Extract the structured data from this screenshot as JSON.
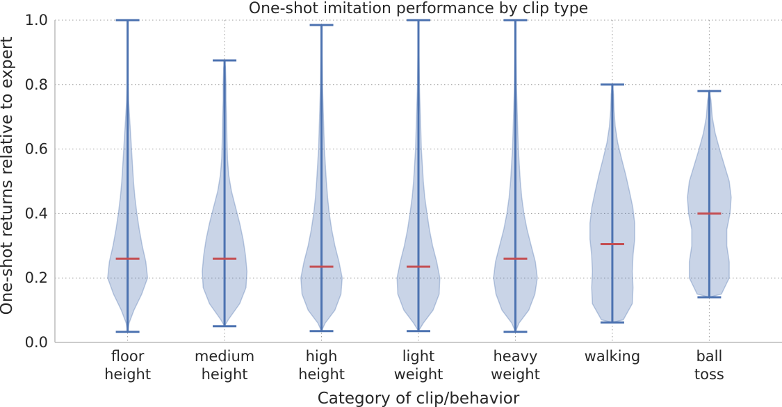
{
  "chart_data": {
    "type": "violin",
    "title": "One-shot imitation performance by clip type",
    "xlabel": "Category of clip/behavior",
    "ylabel": "One-shot returns relative to expert",
    "ylim": [
      0,
      1
    ],
    "yticks": [
      "0.0",
      "0.2",
      "0.4",
      "0.6",
      "0.8",
      "1.0"
    ],
    "grid": true,
    "colors": {
      "body": "#4c72b0",
      "median": "#c44e52",
      "grid": "#999999"
    },
    "categories": [
      {
        "label": [
          "floor",
          "height"
        ],
        "min": 0.033,
        "max": 1.0,
        "median": 0.26,
        "shape": [
          [
            0.033,
            0.0
          ],
          [
            0.06,
            0.06
          ],
          [
            0.1,
            0.26
          ],
          [
            0.15,
            0.58
          ],
          [
            0.2,
            0.82
          ],
          [
            0.25,
            0.75
          ],
          [
            0.3,
            0.6
          ],
          [
            0.35,
            0.48
          ],
          [
            0.4,
            0.38
          ],
          [
            0.45,
            0.3
          ],
          [
            0.5,
            0.24
          ],
          [
            0.55,
            0.2
          ],
          [
            0.6,
            0.16
          ],
          [
            0.65,
            0.12
          ],
          [
            0.7,
            0.08
          ],
          [
            0.75,
            0.04
          ],
          [
            0.8,
            0.02
          ],
          [
            0.9,
            0.01
          ],
          [
            1.0,
            0.0
          ]
        ]
      },
      {
        "label": [
          "medium",
          "height"
        ],
        "min": 0.05,
        "max": 0.875,
        "median": 0.26,
        "shape": [
          [
            0.05,
            0.0
          ],
          [
            0.07,
            0.15
          ],
          [
            0.12,
            0.62
          ],
          [
            0.17,
            0.88
          ],
          [
            0.22,
            0.92
          ],
          [
            0.27,
            0.86
          ],
          [
            0.32,
            0.76
          ],
          [
            0.37,
            0.62
          ],
          [
            0.42,
            0.45
          ],
          [
            0.47,
            0.28
          ],
          [
            0.52,
            0.17
          ],
          [
            0.57,
            0.12
          ],
          [
            0.62,
            0.1
          ],
          [
            0.7,
            0.08
          ],
          [
            0.75,
            0.06
          ],
          [
            0.8,
            0.06
          ],
          [
            0.85,
            0.04
          ],
          [
            0.875,
            0.0
          ]
        ]
      },
      {
        "label": [
          "high",
          "height"
        ],
        "min": 0.035,
        "max": 0.985,
        "median": 0.235,
        "shape": [
          [
            0.035,
            0.0
          ],
          [
            0.06,
            0.15
          ],
          [
            0.1,
            0.55
          ],
          [
            0.15,
            0.8
          ],
          [
            0.2,
            0.85
          ],
          [
            0.25,
            0.72
          ],
          [
            0.3,
            0.55
          ],
          [
            0.35,
            0.42
          ],
          [
            0.4,
            0.32
          ],
          [
            0.45,
            0.25
          ],
          [
            0.5,
            0.2
          ],
          [
            0.55,
            0.16
          ],
          [
            0.6,
            0.12
          ],
          [
            0.7,
            0.08
          ],
          [
            0.8,
            0.04
          ],
          [
            0.9,
            0.02
          ],
          [
            0.985,
            0.0
          ]
        ]
      },
      {
        "label": [
          "light",
          "weight"
        ],
        "min": 0.035,
        "max": 1.0,
        "median": 0.235,
        "shape": [
          [
            0.035,
            0.0
          ],
          [
            0.06,
            0.2
          ],
          [
            0.1,
            0.6
          ],
          [
            0.15,
            0.85
          ],
          [
            0.2,
            0.88
          ],
          [
            0.25,
            0.75
          ],
          [
            0.3,
            0.58
          ],
          [
            0.35,
            0.45
          ],
          [
            0.4,
            0.35
          ],
          [
            0.45,
            0.26
          ],
          [
            0.5,
            0.2
          ],
          [
            0.55,
            0.16
          ],
          [
            0.6,
            0.12
          ],
          [
            0.7,
            0.08
          ],
          [
            0.8,
            0.04
          ],
          [
            0.9,
            0.02
          ],
          [
            1.0,
            0.0
          ]
        ]
      },
      {
        "label": [
          "heavy",
          "weight"
        ],
        "min": 0.033,
        "max": 1.0,
        "median": 0.26,
        "shape": [
          [
            0.033,
            0.0
          ],
          [
            0.06,
            0.15
          ],
          [
            0.1,
            0.55
          ],
          [
            0.15,
            0.8
          ],
          [
            0.2,
            0.9
          ],
          [
            0.25,
            0.82
          ],
          [
            0.3,
            0.65
          ],
          [
            0.35,
            0.48
          ],
          [
            0.4,
            0.35
          ],
          [
            0.45,
            0.26
          ],
          [
            0.5,
            0.2
          ],
          [
            0.55,
            0.16
          ],
          [
            0.6,
            0.12
          ],
          [
            0.7,
            0.08
          ],
          [
            0.8,
            0.04
          ],
          [
            0.9,
            0.02
          ],
          [
            1.0,
            0.0
          ]
        ]
      },
      {
        "label": [
          "walking"
        ],
        "min": 0.062,
        "max": 0.8,
        "median": 0.305,
        "shape": [
          [
            0.062,
            0.0
          ],
          [
            0.07,
            0.45
          ],
          [
            0.12,
            0.82
          ],
          [
            0.17,
            0.85
          ],
          [
            0.22,
            0.82
          ],
          [
            0.27,
            0.85
          ],
          [
            0.32,
            0.92
          ],
          [
            0.37,
            0.92
          ],
          [
            0.42,
            0.84
          ],
          [
            0.47,
            0.7
          ],
          [
            0.52,
            0.55
          ],
          [
            0.57,
            0.38
          ],
          [
            0.62,
            0.22
          ],
          [
            0.67,
            0.12
          ],
          [
            0.72,
            0.07
          ],
          [
            0.77,
            0.05
          ],
          [
            0.8,
            0.0
          ]
        ]
      },
      {
        "label": [
          "ball",
          "toss"
        ],
        "min": 0.14,
        "max": 0.78,
        "median": 0.4,
        "shape": [
          [
            0.14,
            0.0
          ],
          [
            0.15,
            0.5
          ],
          [
            0.2,
            0.82
          ],
          [
            0.25,
            0.82
          ],
          [
            0.3,
            0.72
          ],
          [
            0.35,
            0.72
          ],
          [
            0.4,
            0.85
          ],
          [
            0.45,
            0.9
          ],
          [
            0.5,
            0.82
          ],
          [
            0.55,
            0.62
          ],
          [
            0.6,
            0.42
          ],
          [
            0.65,
            0.24
          ],
          [
            0.7,
            0.12
          ],
          [
            0.75,
            0.07
          ],
          [
            0.78,
            0.0
          ]
        ]
      }
    ]
  }
}
